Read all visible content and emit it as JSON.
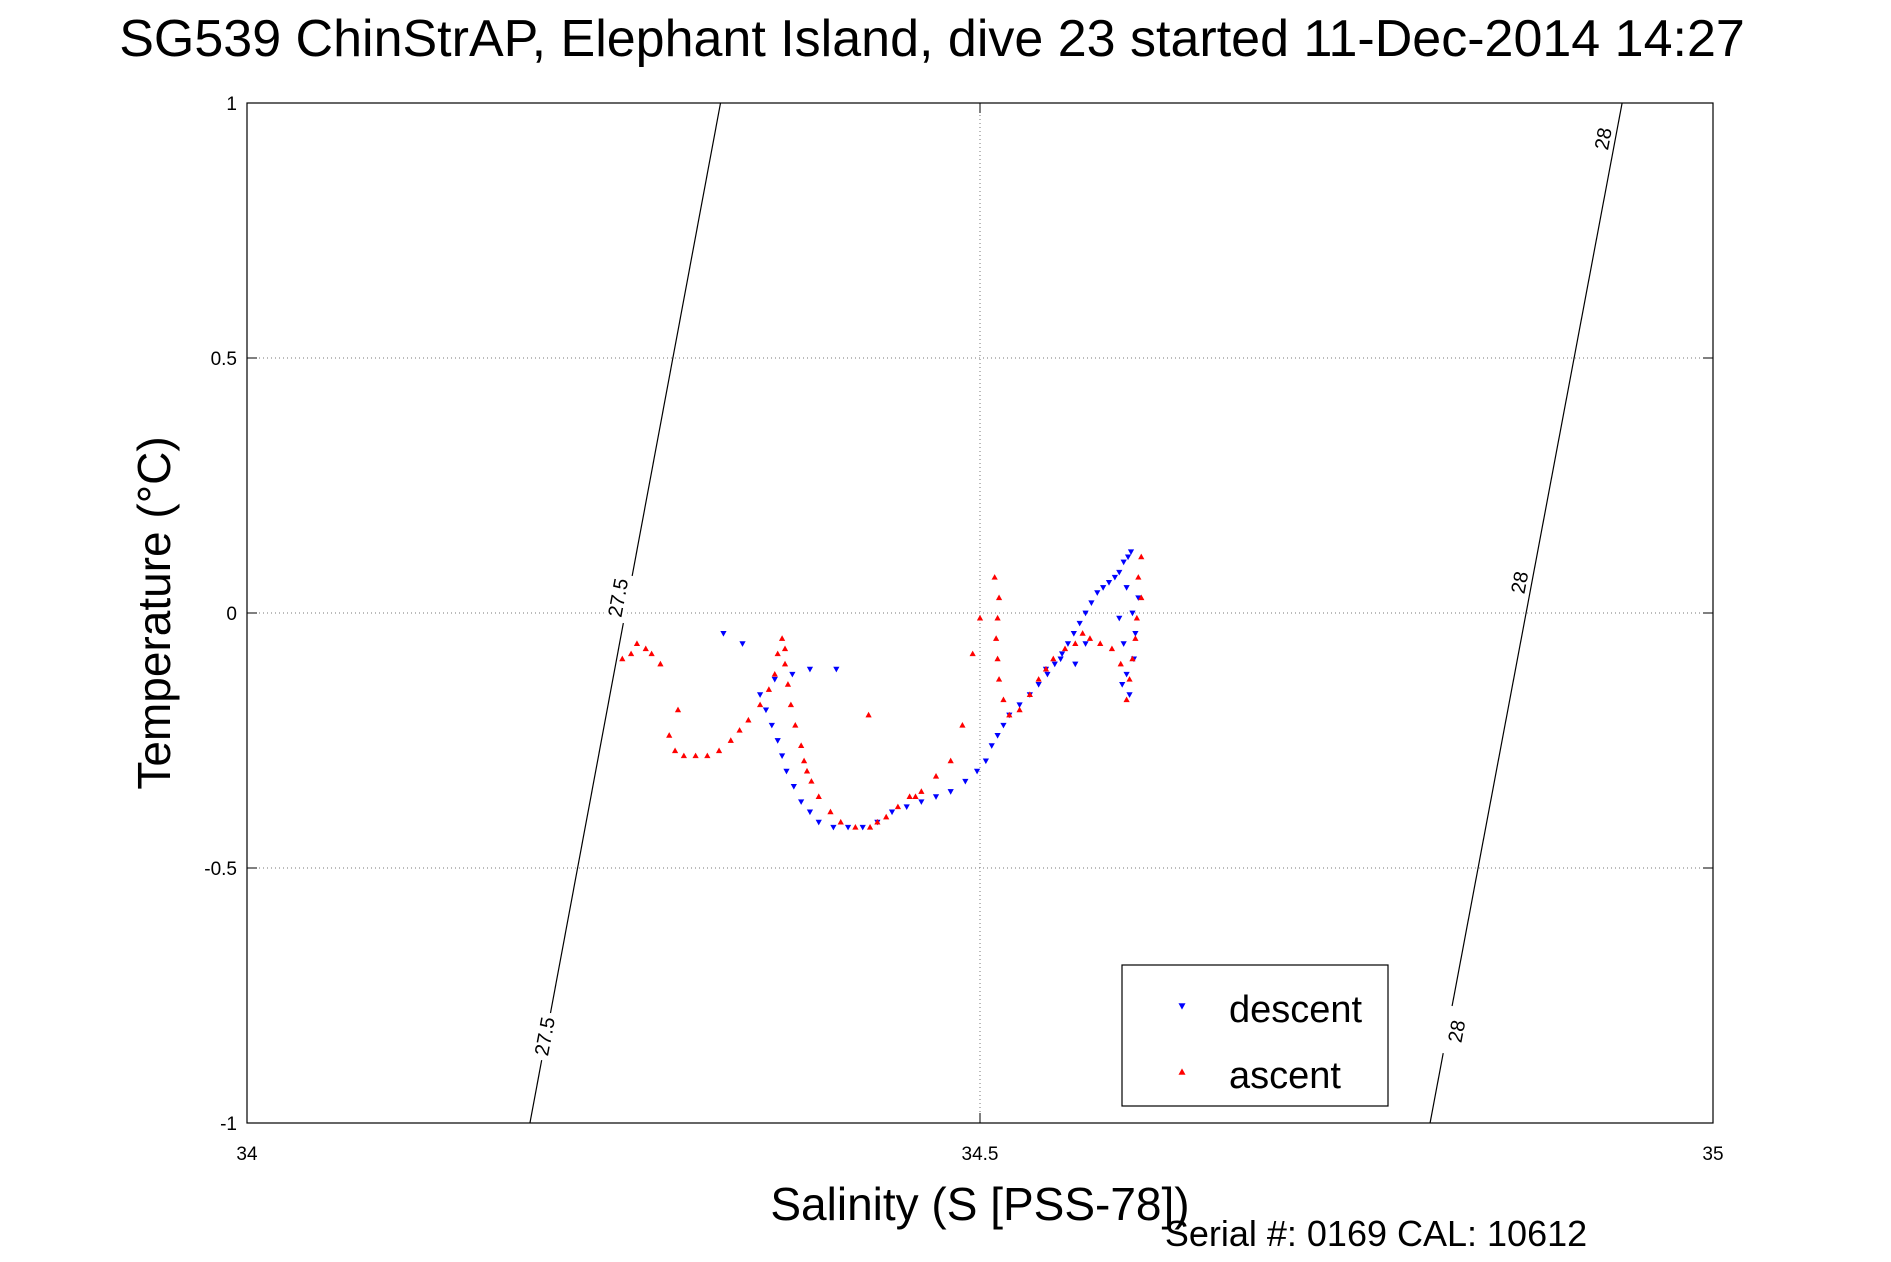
{
  "chart_data": {
    "type": "scatter",
    "title": "SG539 ChinStrAP, Elephant Island, dive 23 started 11-Dec-2014 14:27",
    "xlabel": "Salinity (S [PSS-78])",
    "ylabel": "Temperature (°C)",
    "xlim": [
      34,
      35
    ],
    "ylim": [
      -1,
      1
    ],
    "xticks": [
      34,
      34.5,
      35
    ],
    "yticks": [
      -1,
      -0.5,
      0,
      0.5,
      1
    ],
    "xtick_labels": [
      "34",
      "34.5",
      "35"
    ],
    "ytick_labels": [
      "-1",
      "-0.5",
      "0",
      "0.5",
      "1"
    ],
    "grid": true,
    "legend_position": "bottom-right",
    "footer": "Serial #: 0169 CAL: 10612",
    "density_contours": [
      {
        "label": "27.5",
        "points": [
          [
            34.323,
            1.0
          ],
          [
            34.193,
            -1.0
          ]
        ],
        "label_positions": [
          [
            34.253,
            0.03
          ],
          [
            34.203,
            -0.83
          ]
        ]
      },
      {
        "label": "28",
        "points": [
          [
            34.938,
            1.0
          ],
          [
            34.807,
            -1.0
          ]
        ],
        "label_positions": [
          [
            34.925,
            0.93
          ],
          [
            34.868,
            0.06
          ],
          [
            34.825,
            -0.82
          ]
        ]
      }
    ],
    "series": [
      {
        "name": "descent",
        "color": "#0000ff",
        "marker": "triangle-down",
        "points": [
          [
            34.603,
            0.12
          ],
          [
            34.601,
            0.11
          ],
          [
            34.598,
            0.1
          ],
          [
            34.595,
            0.08
          ],
          [
            34.592,
            0.07
          ],
          [
            34.588,
            0.06
          ],
          [
            34.584,
            0.05
          ],
          [
            34.58,
            0.04
          ],
          [
            34.576,
            0.02
          ],
          [
            34.572,
            0.0
          ],
          [
            34.568,
            -0.02
          ],
          [
            34.564,
            -0.04
          ],
          [
            34.56,
            -0.06
          ],
          [
            34.556,
            -0.08
          ],
          [
            34.551,
            -0.1
          ],
          [
            34.546,
            -0.12
          ],
          [
            34.54,
            -0.14
          ],
          [
            34.534,
            -0.16
          ],
          [
            34.527,
            -0.18
          ],
          [
            34.52,
            -0.2
          ],
          [
            34.516,
            -0.22
          ],
          [
            34.512,
            -0.24
          ],
          [
            34.508,
            -0.26
          ],
          [
            34.504,
            -0.29
          ],
          [
            34.498,
            -0.31
          ],
          [
            34.49,
            -0.33
          ],
          [
            34.48,
            -0.35
          ],
          [
            34.47,
            -0.36
          ],
          [
            34.46,
            -0.37
          ],
          [
            34.45,
            -0.38
          ],
          [
            34.44,
            -0.39
          ],
          [
            34.43,
            -0.41
          ],
          [
            34.42,
            -0.42
          ],
          [
            34.41,
            -0.42
          ],
          [
            34.4,
            -0.42
          ],
          [
            34.39,
            -0.41
          ],
          [
            34.384,
            -0.39
          ],
          [
            34.378,
            -0.37
          ],
          [
            34.373,
            -0.34
          ],
          [
            34.368,
            -0.31
          ],
          [
            34.365,
            -0.28
          ],
          [
            34.362,
            -0.25
          ],
          [
            34.358,
            -0.22
          ],
          [
            34.354,
            -0.19
          ],
          [
            34.35,
            -0.16
          ],
          [
            34.36,
            -0.13
          ],
          [
            34.372,
            -0.12
          ],
          [
            34.384,
            -0.11
          ],
          [
            34.402,
            -0.11
          ],
          [
            34.595,
            -0.01
          ],
          [
            34.598,
            -0.06
          ],
          [
            34.6,
            -0.12
          ],
          [
            34.602,
            -0.16
          ],
          [
            34.604,
            0.0
          ],
          [
            34.606,
            -0.04
          ],
          [
            34.605,
            -0.09
          ],
          [
            34.597,
            -0.14
          ],
          [
            34.608,
            0.03
          ],
          [
            34.6,
            0.05
          ],
          [
            34.565,
            -0.1
          ],
          [
            34.555,
            -0.09
          ],
          [
            34.545,
            -0.11
          ],
          [
            34.572,
            -0.06
          ],
          [
            34.325,
            -0.04
          ],
          [
            34.338,
            -0.06
          ]
        ]
      },
      {
        "name": "ascent",
        "color": "#ff0000",
        "marker": "triangle-up",
        "points": [
          [
            34.61,
            0.11
          ],
          [
            34.608,
            0.07
          ],
          [
            34.61,
            0.03
          ],
          [
            34.607,
            -0.01
          ],
          [
            34.606,
            -0.05
          ],
          [
            34.604,
            -0.09
          ],
          [
            34.602,
            -0.13
          ],
          [
            34.6,
            -0.17
          ],
          [
            34.596,
            -0.1
          ],
          [
            34.59,
            -0.07
          ],
          [
            34.582,
            -0.06
          ],
          [
            34.575,
            -0.05
          ],
          [
            34.57,
            -0.04
          ],
          [
            34.565,
            -0.06
          ],
          [
            34.558,
            -0.07
          ],
          [
            34.55,
            -0.09
          ],
          [
            34.545,
            -0.11
          ],
          [
            34.54,
            -0.13
          ],
          [
            34.534,
            -0.16
          ],
          [
            34.527,
            -0.19
          ],
          [
            34.52,
            -0.2
          ],
          [
            34.516,
            -0.17
          ],
          [
            34.513,
            -0.13
          ],
          [
            34.512,
            -0.09
          ],
          [
            34.511,
            -0.05
          ],
          [
            34.512,
            -0.01
          ],
          [
            34.513,
            0.03
          ],
          [
            34.51,
            0.07
          ],
          [
            34.5,
            -0.01
          ],
          [
            34.495,
            -0.08
          ],
          [
            34.488,
            -0.22
          ],
          [
            34.48,
            -0.29
          ],
          [
            34.47,
            -0.32
          ],
          [
            34.46,
            -0.35
          ],
          [
            34.452,
            -0.36
          ],
          [
            34.444,
            -0.38
          ],
          [
            34.436,
            -0.4
          ],
          [
            34.425,
            -0.42
          ],
          [
            34.415,
            -0.42
          ],
          [
            34.405,
            -0.41
          ],
          [
            34.398,
            -0.39
          ],
          [
            34.39,
            -0.36
          ],
          [
            34.385,
            -0.33
          ],
          [
            34.382,
            -0.31
          ],
          [
            34.38,
            -0.29
          ],
          [
            34.378,
            -0.26
          ],
          [
            34.374,
            -0.22
          ],
          [
            34.371,
            -0.18
          ],
          [
            34.369,
            -0.14
          ],
          [
            34.367,
            -0.1
          ],
          [
            34.367,
            -0.07
          ],
          [
            34.365,
            -0.05
          ],
          [
            34.362,
            -0.08
          ],
          [
            34.36,
            -0.12
          ],
          [
            34.356,
            -0.15
          ],
          [
            34.35,
            -0.18
          ],
          [
            34.342,
            -0.21
          ],
          [
            34.336,
            -0.23
          ],
          [
            34.33,
            -0.25
          ],
          [
            34.322,
            -0.27
          ],
          [
            34.314,
            -0.28
          ],
          [
            34.306,
            -0.28
          ],
          [
            34.298,
            -0.28
          ],
          [
            34.292,
            -0.27
          ],
          [
            34.288,
            -0.24
          ],
          [
            34.294,
            -0.19
          ],
          [
            34.282,
            -0.1
          ],
          [
            34.276,
            -0.08
          ],
          [
            34.272,
            -0.07
          ],
          [
            34.266,
            -0.06
          ],
          [
            34.262,
            -0.08
          ],
          [
            34.256,
            -0.09
          ],
          [
            34.424,
            -0.2
          ],
          [
            34.456,
            -0.36
          ],
          [
            34.43,
            -0.41
          ]
        ]
      }
    ]
  }
}
